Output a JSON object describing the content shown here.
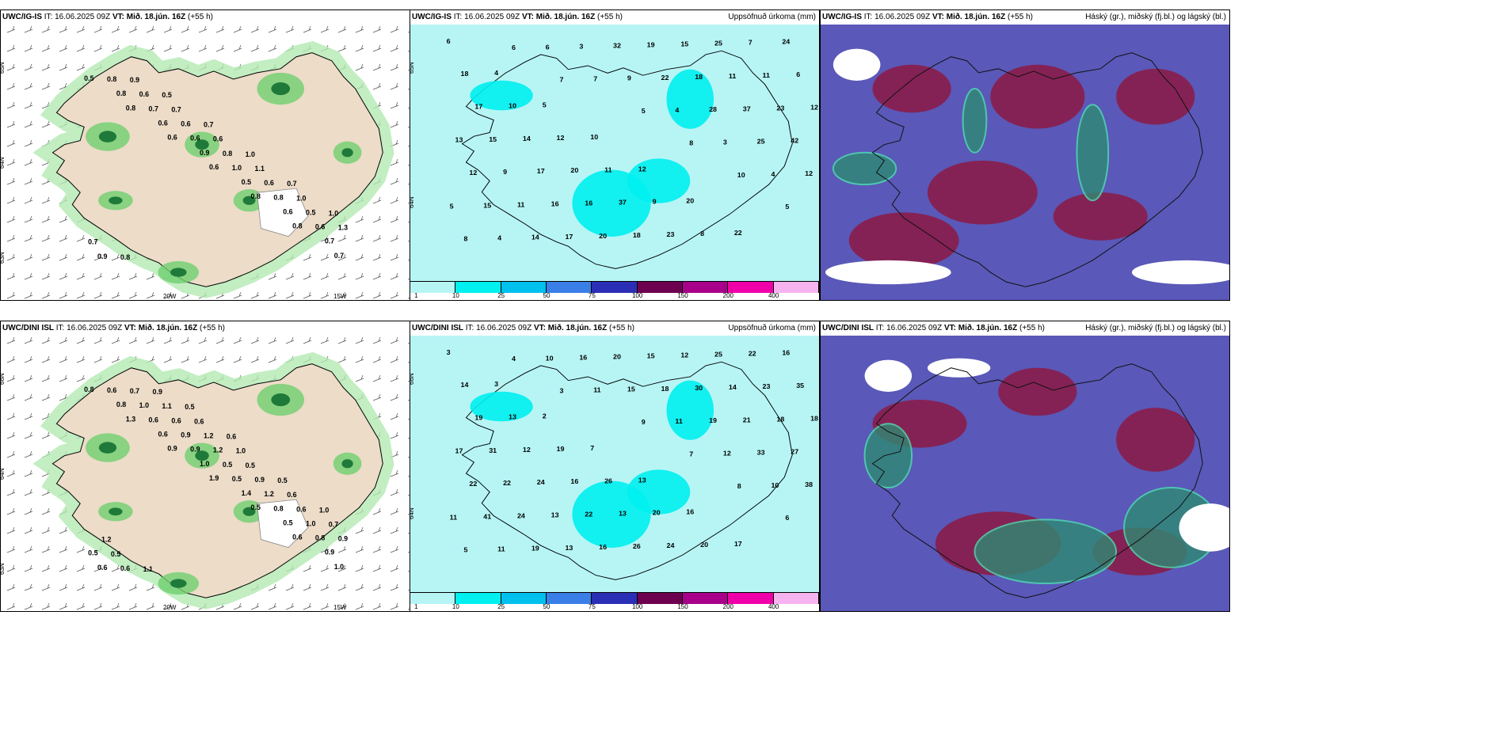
{
  "panels": [
    {
      "model": "UWC/IG-IS",
      "it": "IT: 16.06.2025 09Z",
      "vt_label": "VT:",
      "vt": "Mið. 18.jún. 16Z",
      "lead": "(+55 h)",
      "title": "",
      "lat_labels": [
        "65N",
        "64N",
        "63N"
      ],
      "lon_labels": [
        "20W",
        "15W"
      ],
      "values": [
        "0.5",
        "0.8",
        "0.6",
        "0.6",
        "0.8",
        "0.8",
        "0.7",
        "0.8",
        "0.6",
        "0.9",
        "0.5",
        "0.6",
        "0.7",
        "0.8",
        "0.7",
        "0.6",
        "1.0",
        "0.8",
        "0.6",
        "0.9",
        "0.6",
        "0.6",
        "0.8",
        "0.6",
        "0.5",
        "0.7",
        "0.9",
        "0.7",
        "0.6",
        "1.1",
        "1.0",
        "1.3",
        "0.8",
        "0.5",
        "0.7",
        "1.0",
        "0.7",
        "1.0"
      ]
    },
    {
      "model": "UWC/IG-IS",
      "it": "IT: 16.06.2025 09Z",
      "vt_label": "VT:",
      "vt": "Mið. 18.jún. 16Z",
      "lead": "(+55 h)",
      "title": "Uppsöfnuð úrkoma (mm)",
      "lat_labels": [
        "65N",
        "64N"
      ],
      "lon_labels": [],
      "values": [
        "6",
        "4",
        "5",
        "10",
        "12",
        "20",
        "22",
        "24",
        "18",
        "10",
        "12",
        "11",
        "9",
        "8",
        "7",
        "6",
        "17",
        "14",
        "20",
        "37",
        "23",
        "25",
        "11",
        "12",
        "15",
        "17",
        "16",
        "18",
        "15",
        "11",
        "23",
        "13",
        "9",
        "16",
        "20",
        "19",
        "18",
        "37",
        "42",
        "12",
        "11",
        "17",
        "32",
        "22",
        "28",
        "25",
        "12",
        "15",
        "14",
        "3",
        "9",
        "4",
        "3",
        "4",
        "5",
        "4",
        "6",
        "7",
        "5",
        "8",
        "10",
        "5",
        "8",
        "6",
        "7"
      ],
      "colorbar": {
        "colors": [
          "#b7f5f5",
          "#00f0f0",
          "#00c0ee",
          "#3a7fe8",
          "#2b2fb5",
          "#6e0050",
          "#a8008a",
          "#f000a8",
          "#f7b3f0"
        ],
        "ticks": [
          "1",
          "10",
          "25",
          "50",
          "75",
          "100",
          "150",
          "200",
          "400"
        ]
      }
    },
    {
      "model": "UWC/IG-IS",
      "it": "IT: 16.06.2025 09Z",
      "vt_label": "VT:",
      "vt": "Mið. 18.jún. 16Z",
      "lead": "(+55 h)",
      "title": "Háský (gr.), miðský (fj.bl.) og lágský (bl.)",
      "lat_labels": [],
      "lon_labels": [],
      "values": []
    },
    {
      "model": "UWC/DINI ISL",
      "it": "IT: 16.06.2025 09Z",
      "vt_label": "VT:",
      "vt": "Mið. 18.jún. 16Z",
      "lead": "(+55 h)",
      "title": "",
      "lat_labels": [
        "66N",
        "64N",
        "63N"
      ],
      "lon_labels": [
        "20W",
        "15W"
      ],
      "values": [
        "0.8",
        "1.3",
        "0.9",
        "1.9",
        "0.5",
        "0.6",
        "1.0",
        "0.8",
        "0.6",
        "1.0",
        "1.4",
        "0.5",
        "0.9",
        "0.6",
        "0.6",
        "0.9",
        "0.5",
        "0.8",
        "0.8",
        "0.6",
        "1.0",
        "0.9",
        "0.5",
        "1.2",
        "1.0",
        "0.5",
        "0.7",
        "0.6",
        "1.2",
        "0.9",
        "0.6",
        "0.9",
        "0.6",
        "1.1",
        "1.2",
        "0.5",
        "0.6",
        "0.7",
        "0.5",
        "0.9",
        "0.6",
        "1.0",
        "0.5",
        "1.0",
        "1.2",
        "1.1",
        "0.5",
        "0.6"
      ]
    },
    {
      "model": "UWC/DINI ISL",
      "it": "IT: 16.06.2025 09Z",
      "vt_label": "VT:",
      "vt": "Mið. 18.jún. 16Z",
      "lead": "(+55 h)",
      "title": "Uppsöfnuð úrkoma (mm)",
      "lat_labels": [
        "66N",
        "64N"
      ],
      "lon_labels": [],
      "values": [
        "3",
        "3",
        "2",
        "7",
        "13",
        "16",
        "17",
        "16",
        "14",
        "13",
        "19",
        "26",
        "20",
        "20",
        "22",
        "35",
        "19",
        "12",
        "16",
        "13",
        "24",
        "25",
        "23",
        "18",
        "31",
        "24",
        "22",
        "26",
        "12",
        "14",
        "18",
        "17",
        "22",
        "13",
        "16",
        "15",
        "30",
        "21",
        "27",
        "22",
        "24",
        "13",
        "20",
        "18",
        "19",
        "33",
        "38",
        "41",
        "19",
        "16",
        "15",
        "11",
        "12",
        "10",
        "11",
        "11",
        "10",
        "11",
        "9",
        "7",
        "8",
        "6",
        "5",
        "4",
        "3"
      ],
      "colorbar": {
        "colors": [
          "#b7f5f5",
          "#00f0f0",
          "#00c0ee",
          "#3a7fe8",
          "#2b2fb5",
          "#6e0050",
          "#a8008a",
          "#f000a8",
          "#f7b3f0"
        ],
        "ticks": [
          "1",
          "10",
          "25",
          "50",
          "75",
          "100",
          "150",
          "200",
          "400"
        ]
      }
    },
    {
      "model": "UWC/DINI ISL",
      "it": "IT: 16.06.2025 09Z",
      "vt_label": "VT:",
      "vt": "Mið. 18.jún. 16Z",
      "lead": "(+55 h)",
      "title": "Háský (gr.), miðský (fj.bl.) og lágský (bl.)",
      "lat_labels": [],
      "lon_labels": [],
      "values": []
    }
  ],
  "colors": {
    "land": "#ecdcc8",
    "precip_light": "#b7f5f5",
    "green_light": "#b3eab3",
    "green_mid": "#6fcf6f",
    "green_dark": "#1f7a3a",
    "cloud_high": "#8a1d4a",
    "cloud_mid": "#5a58b8",
    "cloud_low": "#2f8a74",
    "sea_white": "#ffffff"
  }
}
